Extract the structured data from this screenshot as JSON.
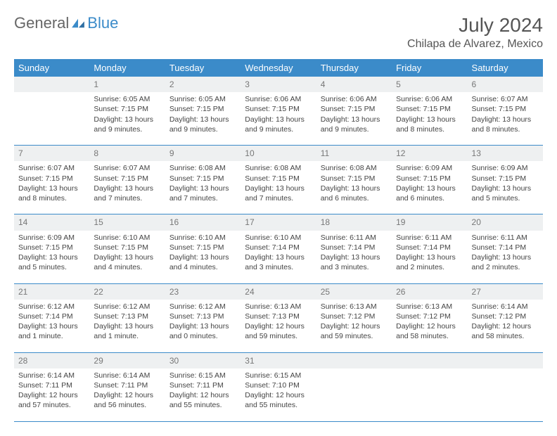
{
  "brand": {
    "part1": "General",
    "part2": "Blue"
  },
  "title": "July 2024",
  "location": "Chilapa de Alvarez, Mexico",
  "colors": {
    "header_bg": "#3b8bc9",
    "header_text": "#ffffff",
    "daynum_bg": "#eef0f1",
    "daynum_text": "#777777",
    "row_divider": "#3b8bc9",
    "body_text": "#444444"
  },
  "weekdays": [
    "Sunday",
    "Monday",
    "Tuesday",
    "Wednesday",
    "Thursday",
    "Friday",
    "Saturday"
  ],
  "weeks": [
    {
      "nums": [
        "",
        "1",
        "2",
        "3",
        "4",
        "5",
        "6"
      ],
      "cells": [
        "",
        "Sunrise: 6:05 AM\nSunset: 7:15 PM\nDaylight: 13 hours and 9 minutes.",
        "Sunrise: 6:05 AM\nSunset: 7:15 PM\nDaylight: 13 hours and 9 minutes.",
        "Sunrise: 6:06 AM\nSunset: 7:15 PM\nDaylight: 13 hours and 9 minutes.",
        "Sunrise: 6:06 AM\nSunset: 7:15 PM\nDaylight: 13 hours and 9 minutes.",
        "Sunrise: 6:06 AM\nSunset: 7:15 PM\nDaylight: 13 hours and 8 minutes.",
        "Sunrise: 6:07 AM\nSunset: 7:15 PM\nDaylight: 13 hours and 8 minutes."
      ]
    },
    {
      "nums": [
        "7",
        "8",
        "9",
        "10",
        "11",
        "12",
        "13"
      ],
      "cells": [
        "Sunrise: 6:07 AM\nSunset: 7:15 PM\nDaylight: 13 hours and 8 minutes.",
        "Sunrise: 6:07 AM\nSunset: 7:15 PM\nDaylight: 13 hours and 7 minutes.",
        "Sunrise: 6:08 AM\nSunset: 7:15 PM\nDaylight: 13 hours and 7 minutes.",
        "Sunrise: 6:08 AM\nSunset: 7:15 PM\nDaylight: 13 hours and 7 minutes.",
        "Sunrise: 6:08 AM\nSunset: 7:15 PM\nDaylight: 13 hours and 6 minutes.",
        "Sunrise: 6:09 AM\nSunset: 7:15 PM\nDaylight: 13 hours and 6 minutes.",
        "Sunrise: 6:09 AM\nSunset: 7:15 PM\nDaylight: 13 hours and 5 minutes."
      ]
    },
    {
      "nums": [
        "14",
        "15",
        "16",
        "17",
        "18",
        "19",
        "20"
      ],
      "cells": [
        "Sunrise: 6:09 AM\nSunset: 7:15 PM\nDaylight: 13 hours and 5 minutes.",
        "Sunrise: 6:10 AM\nSunset: 7:15 PM\nDaylight: 13 hours and 4 minutes.",
        "Sunrise: 6:10 AM\nSunset: 7:15 PM\nDaylight: 13 hours and 4 minutes.",
        "Sunrise: 6:10 AM\nSunset: 7:14 PM\nDaylight: 13 hours and 3 minutes.",
        "Sunrise: 6:11 AM\nSunset: 7:14 PM\nDaylight: 13 hours and 3 minutes.",
        "Sunrise: 6:11 AM\nSunset: 7:14 PM\nDaylight: 13 hours and 2 minutes.",
        "Sunrise: 6:11 AM\nSunset: 7:14 PM\nDaylight: 13 hours and 2 minutes."
      ]
    },
    {
      "nums": [
        "21",
        "22",
        "23",
        "24",
        "25",
        "26",
        "27"
      ],
      "cells": [
        "Sunrise: 6:12 AM\nSunset: 7:14 PM\nDaylight: 13 hours and 1 minute.",
        "Sunrise: 6:12 AM\nSunset: 7:13 PM\nDaylight: 13 hours and 1 minute.",
        "Sunrise: 6:12 AM\nSunset: 7:13 PM\nDaylight: 13 hours and 0 minutes.",
        "Sunrise: 6:13 AM\nSunset: 7:13 PM\nDaylight: 12 hours and 59 minutes.",
        "Sunrise: 6:13 AM\nSunset: 7:12 PM\nDaylight: 12 hours and 59 minutes.",
        "Sunrise: 6:13 AM\nSunset: 7:12 PM\nDaylight: 12 hours and 58 minutes.",
        "Sunrise: 6:14 AM\nSunset: 7:12 PM\nDaylight: 12 hours and 58 minutes."
      ]
    },
    {
      "nums": [
        "28",
        "29",
        "30",
        "31",
        "",
        "",
        ""
      ],
      "cells": [
        "Sunrise: 6:14 AM\nSunset: 7:11 PM\nDaylight: 12 hours and 57 minutes.",
        "Sunrise: 6:14 AM\nSunset: 7:11 PM\nDaylight: 12 hours and 56 minutes.",
        "Sunrise: 6:15 AM\nSunset: 7:11 PM\nDaylight: 12 hours and 55 minutes.",
        "Sunrise: 6:15 AM\nSunset: 7:10 PM\nDaylight: 12 hours and 55 minutes.",
        "",
        "",
        ""
      ]
    }
  ]
}
